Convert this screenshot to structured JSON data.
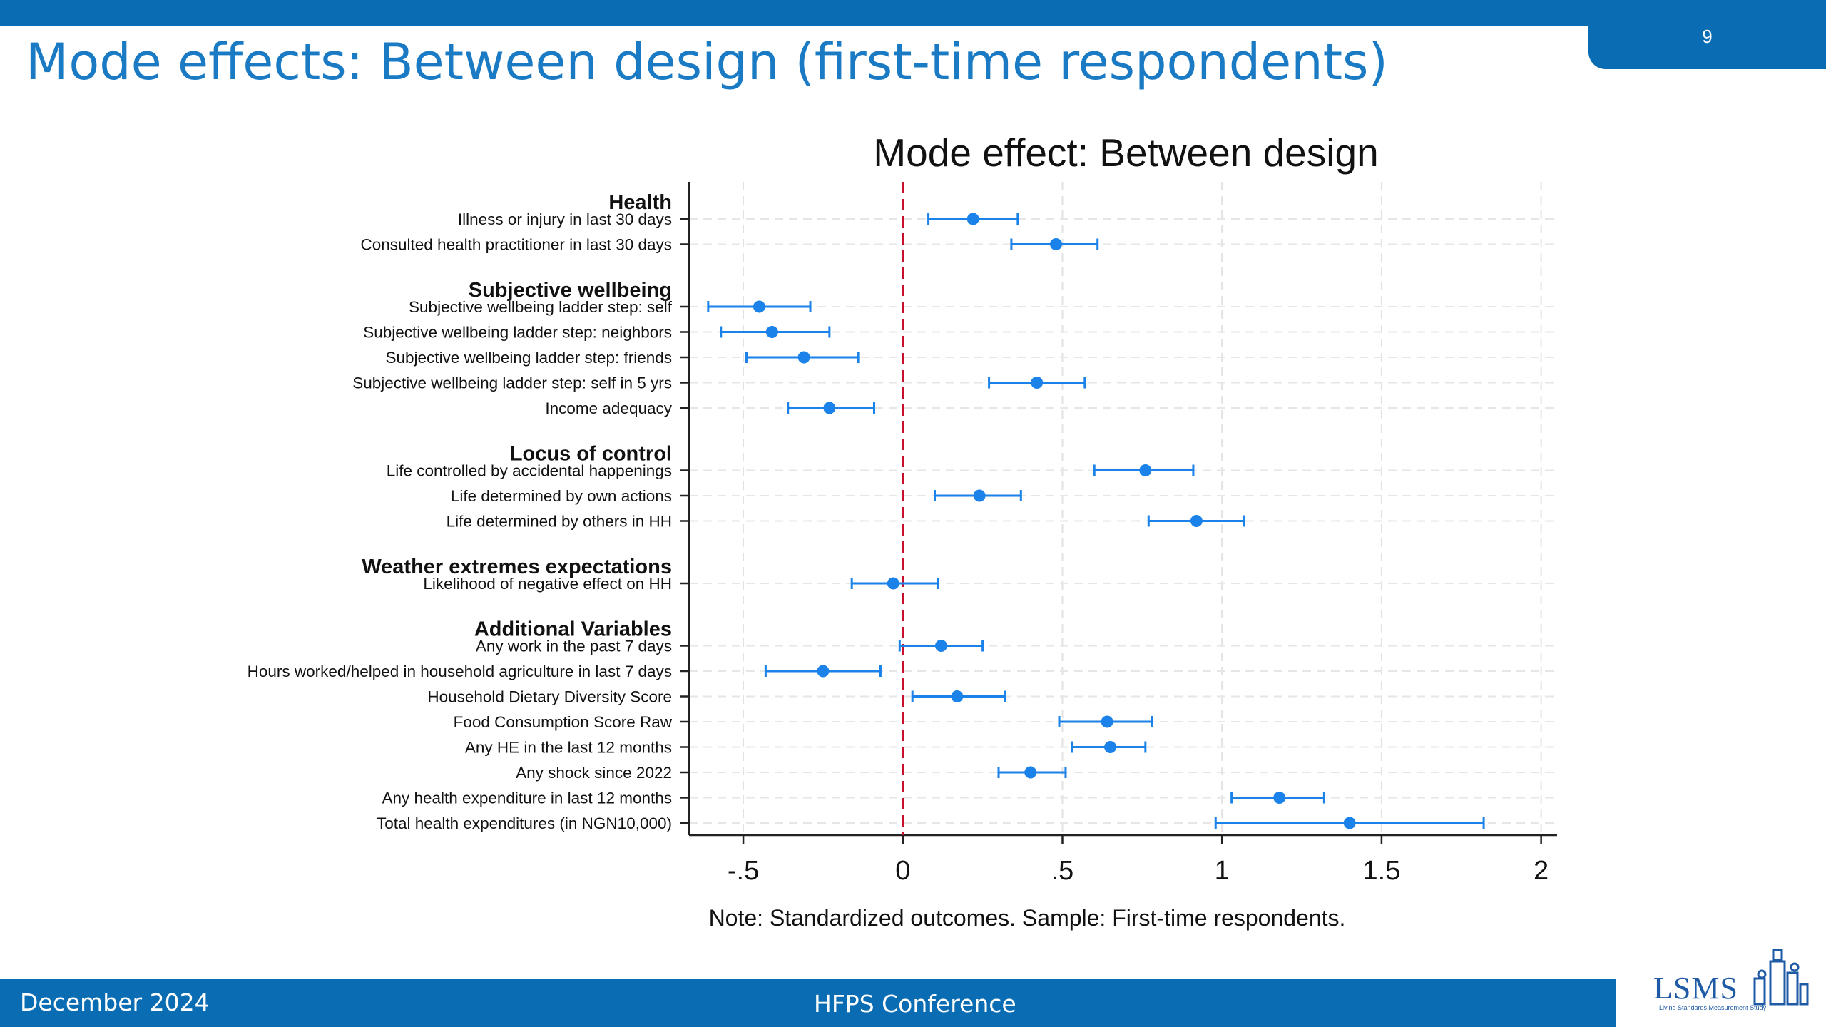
{
  "slide": {
    "title": "Mode effects: Between design (first-time respondents)",
    "page_number": "9",
    "footer_left": "December 2024",
    "footer_center": "HFPS Conference",
    "logo_text": "LSMS",
    "logo_subtext": "Living Standards Measurement Study"
  },
  "colors": {
    "brand_blue": "#0a6db4",
    "title_blue": "#1a7bc4",
    "marker": "#1a82e8",
    "zero_line": "#c8102e"
  },
  "chart_data": {
    "type": "scatter",
    "subtype": "coefficient-plot-with-ci",
    "title": "Mode effect: Between design",
    "note": "Note: Standardized outcomes. Sample: First-time respondents.",
    "xlabel": "",
    "xlim": [
      -0.67,
      2.05
    ],
    "xticks": [
      -0.5,
      0,
      0.5,
      1,
      1.5,
      2
    ],
    "xtick_labels": [
      "-.5",
      "0",
      ".5",
      "1",
      "1.5",
      "2"
    ],
    "reference_line": 0,
    "grid": true,
    "groups": [
      {
        "name": "Health",
        "items": [
          {
            "label": "Illness or injury in last 30 days",
            "value": 0.22,
            "lo": 0.08,
            "hi": 0.36
          },
          {
            "label": "Consulted health practitioner in last 30 days",
            "value": 0.48,
            "lo": 0.34,
            "hi": 0.61
          }
        ]
      },
      {
        "name": "Subjective wellbeing",
        "items": [
          {
            "label": "Subjective wellbeing ladder step: self",
            "value": -0.45,
            "lo": -0.61,
            "hi": -0.29
          },
          {
            "label": "Subjective wellbeing ladder step: neighbors",
            "value": -0.41,
            "lo": -0.57,
            "hi": -0.23
          },
          {
            "label": "Subjective wellbeing ladder step: friends",
            "value": -0.31,
            "lo": -0.49,
            "hi": -0.14
          },
          {
            "label": "Subjective wellbeing ladder step: self in 5 yrs",
            "value": 0.42,
            "lo": 0.27,
            "hi": 0.57
          },
          {
            "label": "Income adequacy",
            "value": -0.23,
            "lo": -0.36,
            "hi": -0.09
          }
        ]
      },
      {
        "name": "Locus of control",
        "items": [
          {
            "label": "Life controlled by accidental happenings",
            "value": 0.76,
            "lo": 0.6,
            "hi": 0.91
          },
          {
            "label": "Life determined by own actions",
            "value": 0.24,
            "lo": 0.1,
            "hi": 0.37
          },
          {
            "label": "Life determined by others in HH",
            "value": 0.92,
            "lo": 0.77,
            "hi": 1.07
          }
        ]
      },
      {
        "name": "Weather extremes expectations",
        "items": [
          {
            "label": "Likelihood of negative effect on HH",
            "value": -0.03,
            "lo": -0.16,
            "hi": 0.11
          }
        ]
      },
      {
        "name": "Additional Variables",
        "items": [
          {
            "label": "Any work in the past 7 days",
            "value": 0.12,
            "lo": -0.01,
            "hi": 0.25
          },
          {
            "label": "Hours worked/helped in household agriculture in last 7 days",
            "value": -0.25,
            "lo": -0.43,
            "hi": -0.07
          },
          {
            "label": "Household Dietary Diversity Score",
            "value": 0.17,
            "lo": 0.03,
            "hi": 0.32
          },
          {
            "label": "Food Consumption Score Raw",
            "value": 0.64,
            "lo": 0.49,
            "hi": 0.78
          },
          {
            "label": "Any HE in the last 12 months",
            "value": 0.65,
            "lo": 0.53,
            "hi": 0.76
          },
          {
            "label": "Any shock since 2022",
            "value": 0.4,
            "lo": 0.3,
            "hi": 0.51
          },
          {
            "label": "Any health expenditure in last 12 months",
            "value": 1.18,
            "lo": 1.03,
            "hi": 1.32
          },
          {
            "label": "Total health expenditures (in NGN10,000)",
            "value": 1.4,
            "lo": 0.98,
            "hi": 1.82
          }
        ]
      }
    ]
  }
}
